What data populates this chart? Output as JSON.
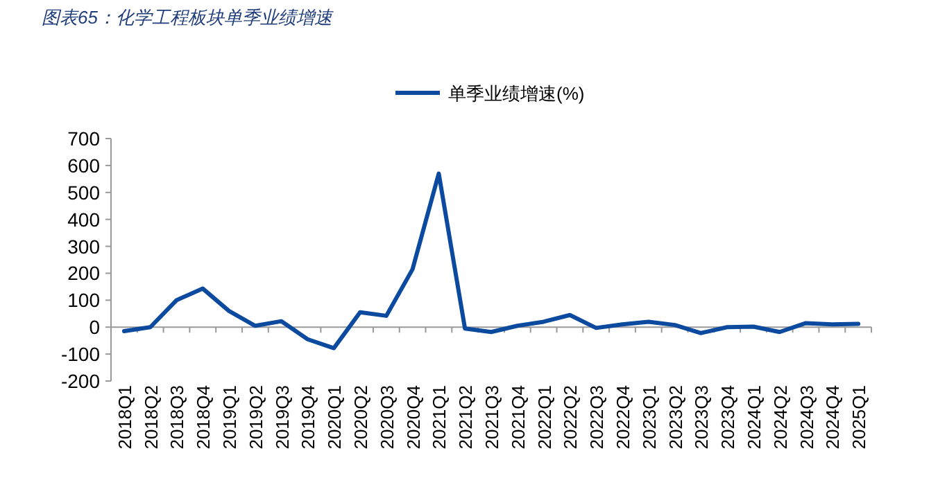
{
  "chart_data": {
    "type": "line",
    "title": "图表65：化学工程板块单季业绩增速",
    "categories": [
      "2018Q1",
      "2018Q2",
      "2018Q3",
      "2018Q4",
      "2019Q1",
      "2019Q2",
      "2019Q3",
      "2019Q4",
      "2020Q1",
      "2020Q2",
      "2020Q3",
      "2020Q4",
      "2021Q1",
      "2021Q2",
      "2021Q3",
      "2021Q4",
      "2022Q1",
      "2022Q2",
      "2022Q3",
      "2022Q4",
      "2023Q1",
      "2023Q2",
      "2023Q3",
      "2023Q4",
      "2024Q1",
      "2024Q2",
      "2024Q3",
      "2024Q4",
      "2025Q1"
    ],
    "series": [
      {
        "name": "单季业绩增速(%)",
        "color": "#0b4a9e",
        "values": [
          -15,
          0,
          100,
          143,
          60,
          5,
          22,
          -45,
          -78,
          55,
          42,
          215,
          570,
          -5,
          -18,
          5,
          20,
          45,
          -3,
          10,
          20,
          8,
          -22,
          0,
          2,
          -18,
          15,
          10,
          12
        ]
      }
    ],
    "ylim": [
      -200,
      700
    ],
    "yticks": [
      -200,
      -100,
      0,
      100,
      200,
      300,
      400,
      500,
      600,
      700
    ],
    "legend": "top",
    "marker": "none",
    "line_style": "solid"
  }
}
